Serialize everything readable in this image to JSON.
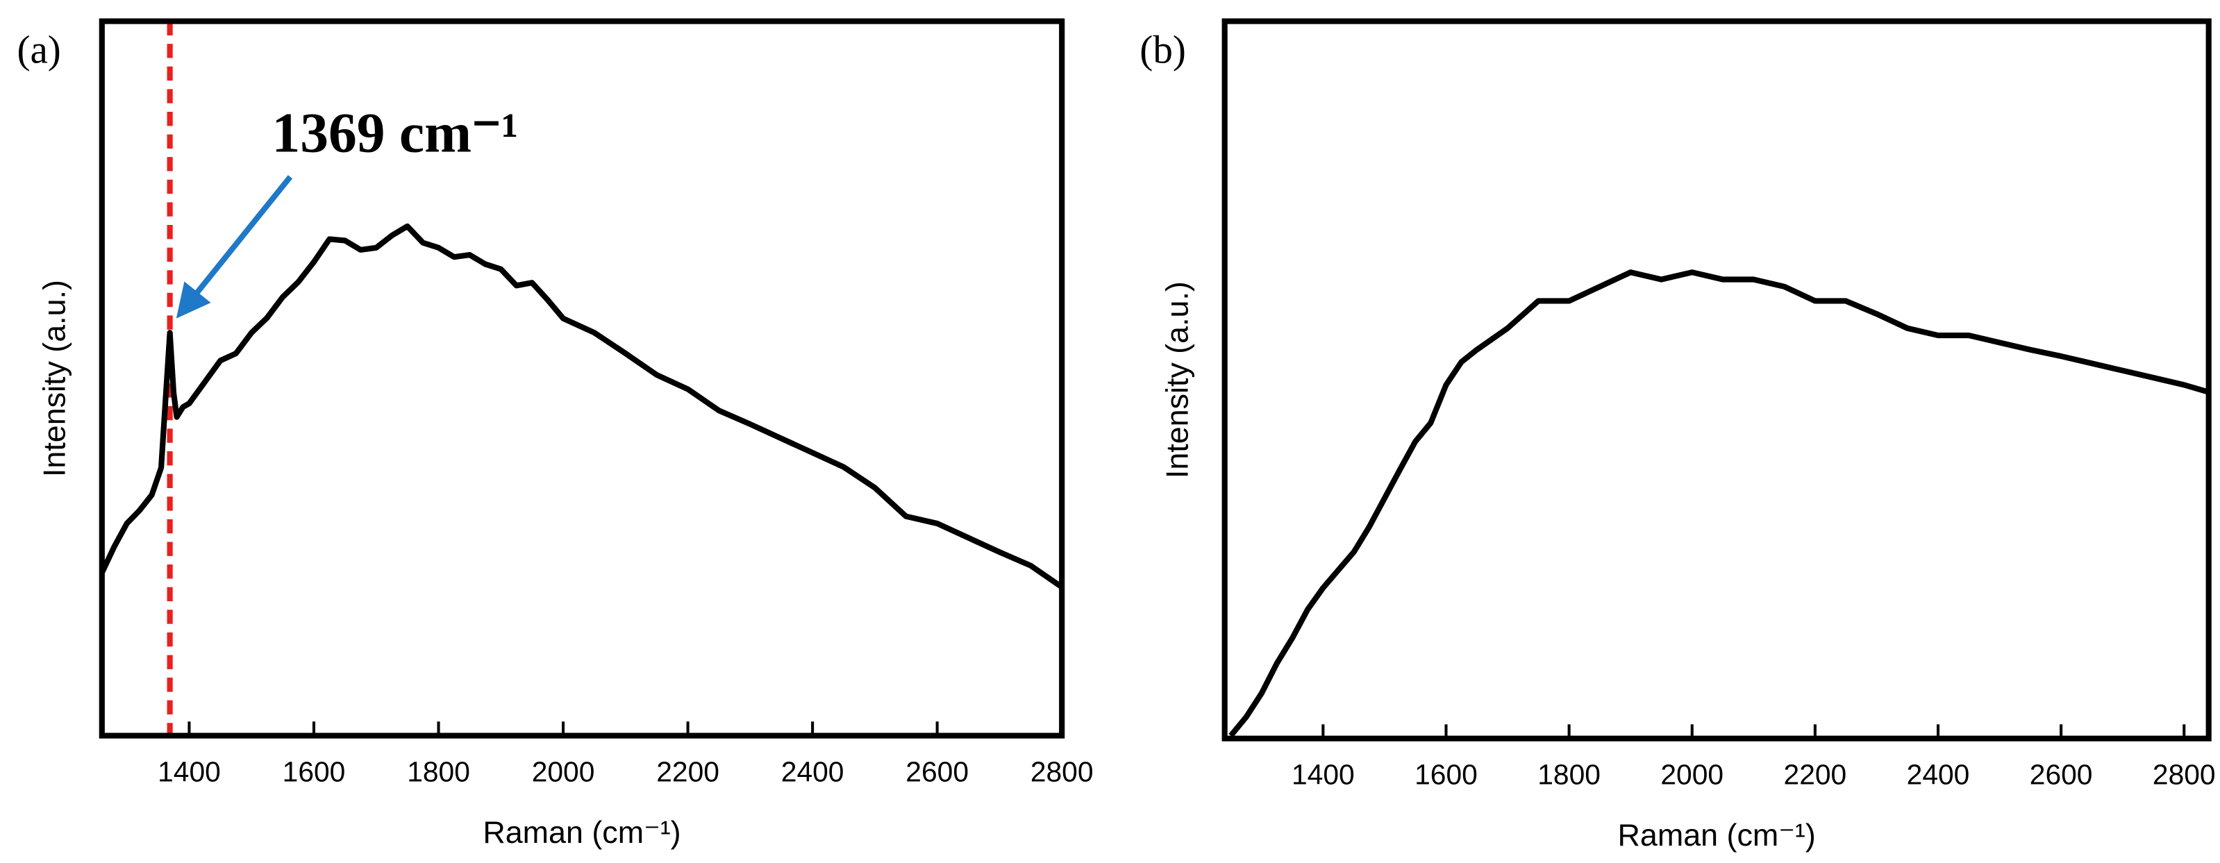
{
  "chart_data": [
    {
      "type": "line",
      "panel_label": "(a)",
      "x_label": "Raman (cm⁻¹)",
      "y_label": "Intensity (a.u.)",
      "xlim": [
        1260,
        2800
      ],
      "xticks": [
        1400,
        1600,
        1800,
        2000,
        2200,
        2400,
        2600,
        2800
      ],
      "ylim": [
        0,
        100
      ],
      "x": [
        1260,
        1280,
        1300,
        1320,
        1340,
        1355,
        1362,
        1369,
        1375,
        1380,
        1390,
        1400,
        1425,
        1450,
        1475,
        1500,
        1525,
        1550,
        1575,
        1600,
        1625,
        1650,
        1675,
        1700,
        1725,
        1750,
        1775,
        1800,
        1825,
        1850,
        1875,
        1900,
        1925,
        1950,
        1975,
        2000,
        2050,
        2100,
        2150,
        2200,
        2250,
        2300,
        2350,
        2400,
        2450,
        2500,
        2550,
        2600,
        2650,
        2700,
        2750,
        2800
      ],
      "series": [
        {
          "name": "spectrum",
          "color": "#000000",
          "values": [
            22.8,
            26.5,
            29.7,
            31.5,
            33.7,
            37.5,
            47.0,
            56.4,
            48.0,
            44.6,
            46.0,
            46.5,
            49.5,
            52.5,
            53.5,
            56.4,
            58.5,
            61.4,
            63.5,
            66.3,
            69.5,
            69.3,
            68.0,
            68.3,
            70.0,
            71.3,
            69.0,
            68.3,
            67.0,
            67.3,
            66.0,
            65.3,
            63.0,
            63.4,
            61.0,
            58.4,
            56.4,
            53.5,
            50.5,
            48.5,
            45.5,
            43.6,
            41.6,
            39.6,
            37.6,
            34.7,
            30.7,
            29.7,
            27.7,
            25.7,
            23.8,
            20.8
          ]
        }
      ],
      "annotation": {
        "text": "1369 cm⁻¹",
        "x": 1369,
        "color": "#e8211f",
        "arrow_color": "#1f78c8"
      }
    },
    {
      "type": "line",
      "panel_label": "(b)",
      "x_label": "Raman (cm⁻¹)",
      "y_label": "Intensity (a.u.)",
      "xlim": [
        1240,
        2840
      ],
      "xticks": [
        1400,
        1600,
        1800,
        2000,
        2200,
        2400,
        2600,
        2800
      ],
      "ylim": [
        0,
        100
      ],
      "x": [
        1250,
        1275,
        1300,
        1325,
        1350,
        1375,
        1400,
        1425,
        1450,
        1475,
        1500,
        1525,
        1550,
        1575,
        1600,
        1625,
        1650,
        1700,
        1750,
        1800,
        1850,
        1900,
        1950,
        2000,
        2050,
        2100,
        2150,
        2200,
        2250,
        2300,
        2350,
        2400,
        2450,
        2500,
        2550,
        2600,
        2650,
        2700,
        2750,
        2800,
        2840
      ],
      "series": [
        {
          "name": "spectrum",
          "color": "#000000",
          "values": [
            0.4,
            3.0,
            6.3,
            10.5,
            14.0,
            18.0,
            21.0,
            23.5,
            26.0,
            29.5,
            33.5,
            37.5,
            41.4,
            44.0,
            49.3,
            52.5,
            54.2,
            57.2,
            61.0,
            61.0,
            63.0,
            65.0,
            64.0,
            65.0,
            64.0,
            64.0,
            63.0,
            61.0,
            61.0,
            59.2,
            57.2,
            56.2,
            56.2,
            55.2,
            54.2,
            53.3,
            52.3,
            51.3,
            50.3,
            49.3,
            48.3
          ]
        }
      ]
    }
  ]
}
